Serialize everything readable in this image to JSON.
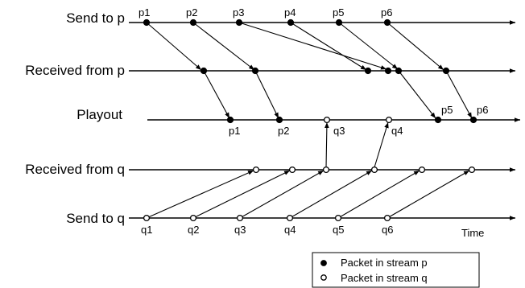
{
  "rows": {
    "send_p": "Send to p",
    "recv_p": "Received from p",
    "playout": "Playout",
    "recv_q": "Received from q",
    "send_q": "Send to q"
  },
  "time_label": "Time",
  "packets": {
    "p": [
      "p1",
      "p2",
      "p3",
      "p4",
      "p5",
      "p6"
    ],
    "q": [
      "q1",
      "q2",
      "q3",
      "q4",
      "q5",
      "q6"
    ],
    "playout_p": [
      "p1",
      "p2",
      "p5",
      "p6"
    ],
    "playout_q": [
      "q3",
      "q4"
    ]
  },
  "legend": {
    "filled": "Packet in stream p",
    "hollow": "Packet in stream q"
  }
}
